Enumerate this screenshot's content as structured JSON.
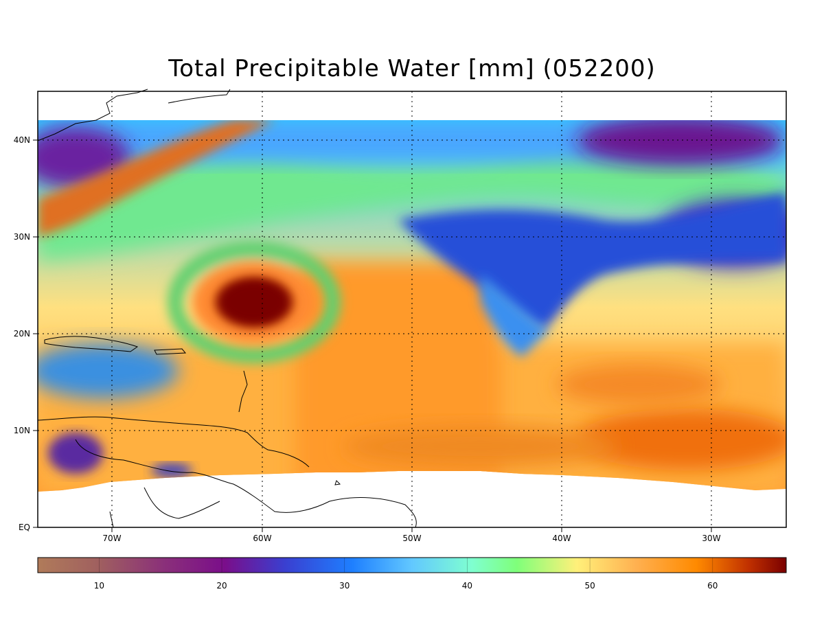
{
  "title": "Total Precipitable Water [mm]  (052200)",
  "map": {
    "lat_labels": [
      "40N",
      "30N",
      "20N",
      "10N",
      "EQ"
    ],
    "lon_labels": [
      "70W",
      "60W",
      "50W",
      "40W",
      "30W"
    ]
  },
  "colorbar": {
    "unit": "mm",
    "range": [
      5,
      66
    ],
    "tick_labels": [
      "10",
      "20",
      "30",
      "40",
      "50",
      "60"
    ],
    "colors": {
      "low": "#b07b5a",
      "mid_low": "#7a0e8a",
      "mid": "#1e7fff",
      "mid_high": "#7fff7a",
      "high": "#ff8a00",
      "max": "#7a0000"
    }
  },
  "chart_data": {
    "type": "heatmap",
    "title": "Total Precipitable Water [mm]  (052200)",
    "xlabel": "",
    "ylabel": "",
    "x_ticks": [
      "70W",
      "60W",
      "50W",
      "40W",
      "30W"
    ],
    "y_ticks": [
      "40N",
      "30N",
      "20N",
      "10N",
      "EQ"
    ],
    "value_range": [
      5,
      66
    ],
    "features": [
      {
        "name": "hurricane core",
        "lat": 24,
        "lon": -61,
        "value": 66
      },
      {
        "name": "dry band",
        "lat": 38,
        "lon": -70,
        "value": 18
      },
      {
        "name": "moist tropical belt",
        "lat": 9,
        "lon": -35,
        "value": 58
      }
    ]
  }
}
